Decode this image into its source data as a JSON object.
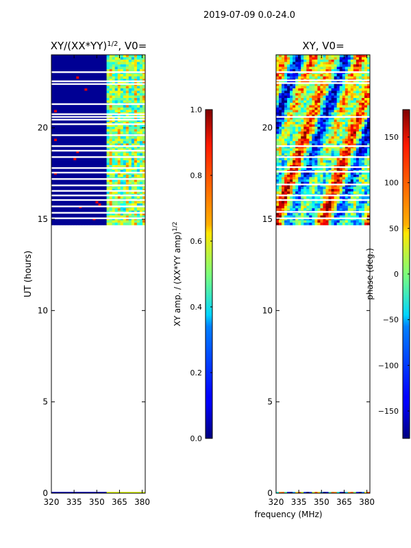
{
  "figure": {
    "suptitle": "2019-07-09 0.0-24.0",
    "shared_xlabel": "frequency (MHz)"
  },
  "chart_data": [
    {
      "type": "heatmap",
      "title_main": "XY/(XX*YY)",
      "title_exp": "1/2",
      "title_suffix": ", V0=",
      "xlabel": "",
      "ylabel": "UT (hours)",
      "xlim": [
        320,
        382
      ],
      "ylim": [
        0,
        24
      ],
      "xticks": [
        320,
        335,
        350,
        365,
        380
      ],
      "yticks": [
        0,
        5,
        10,
        15,
        20
      ],
      "data_start_ut": 14.8,
      "gap_rows_ut": [
        15.05,
        15.35,
        15.7,
        16.05,
        16.3,
        16.55,
        16.85,
        17.2,
        17.55,
        17.8,
        18.4,
        18.75,
        19.0,
        19.6,
        20.2,
        20.45,
        20.6,
        20.75,
        21.3,
        22.4,
        22.55,
        23.05
      ],
      "colorbar": {
        "label_main": "XY amp. / (XX*YY amp)",
        "label_exp": "1/2",
        "ticks": [
          0.0,
          0.2,
          0.4,
          0.6,
          0.8,
          1.0
        ],
        "tick_labels": [
          "0.0",
          "0.2",
          "0.4",
          "0.6",
          "0.8",
          "1.0"
        ],
        "vmin": 0.0,
        "vmax": 1.0
      }
    },
    {
      "type": "heatmap",
      "title_main": "XY, V0=",
      "xlabel": "frequency (MHz)",
      "ylabel": "",
      "xlim": [
        320,
        382
      ],
      "ylim": [
        0,
        24
      ],
      "xticks": [
        320,
        335,
        350,
        365,
        380
      ],
      "yticks": [
        0,
        5,
        10,
        15,
        20
      ],
      "data_start_ut": 14.8,
      "gap_rows_ut": [
        15.05,
        15.4,
        16.05,
        16.3,
        16.9,
        17.6,
        17.85,
        18.4,
        19.0,
        20.6,
        22.45,
        22.6,
        23.05
      ],
      "colorbar": {
        "label_main": "phase (deg.)",
        "ticks": [
          -150,
          -100,
          -50,
          0,
          50,
          100,
          150
        ],
        "tick_labels": [
          "−150",
          "−100",
          "−50",
          "0",
          "50",
          "100",
          "150"
        ],
        "vmin": -180,
        "vmax": 180
      }
    }
  ]
}
